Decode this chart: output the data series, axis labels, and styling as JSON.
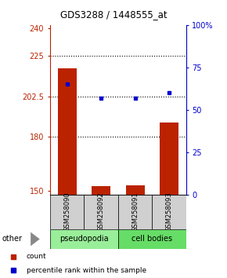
{
  "title": "GDS3288 / 1448555_at",
  "samples": [
    "GSM258090",
    "GSM258092",
    "GSM258091",
    "GSM258093"
  ],
  "groups": [
    "pseudopodia",
    "pseudopodia",
    "cell bodies",
    "cell bodies"
  ],
  "bar_values": [
    218.0,
    152.5,
    153.0,
    188.0
  ],
  "dot_values": [
    65.0,
    57.0,
    57.0,
    60.0
  ],
  "ylim_left": [
    148,
    242
  ],
  "ylim_right": [
    0,
    100
  ],
  "yticks_left": [
    150,
    180,
    202.5,
    225,
    240
  ],
  "ytick_labels_left": [
    "150",
    "180",
    "202.5",
    "225",
    "240"
  ],
  "yticks_right": [
    0,
    25,
    50,
    75,
    100
  ],
  "ytick_labels_right": [
    "0",
    "25",
    "50",
    "75",
    "100%"
  ],
  "hlines": [
    225,
    202.5,
    180
  ],
  "bar_color": "#bb2200",
  "dot_color": "#0000cc",
  "pseudopodia_color": "#99ee99",
  "cell_bodies_color": "#66dd66",
  "left_axis_color": "#bb2200",
  "right_axis_color": "#0000cc",
  "legend_count_label": "count",
  "legend_pct_label": "percentile rank within the sample",
  "other_label": "other",
  "bar_width": 0.55,
  "background_color": "#ffffff",
  "title_fontsize": 8.5,
  "tick_fontsize": 7,
  "label_fontsize": 6,
  "group_fontsize": 7
}
